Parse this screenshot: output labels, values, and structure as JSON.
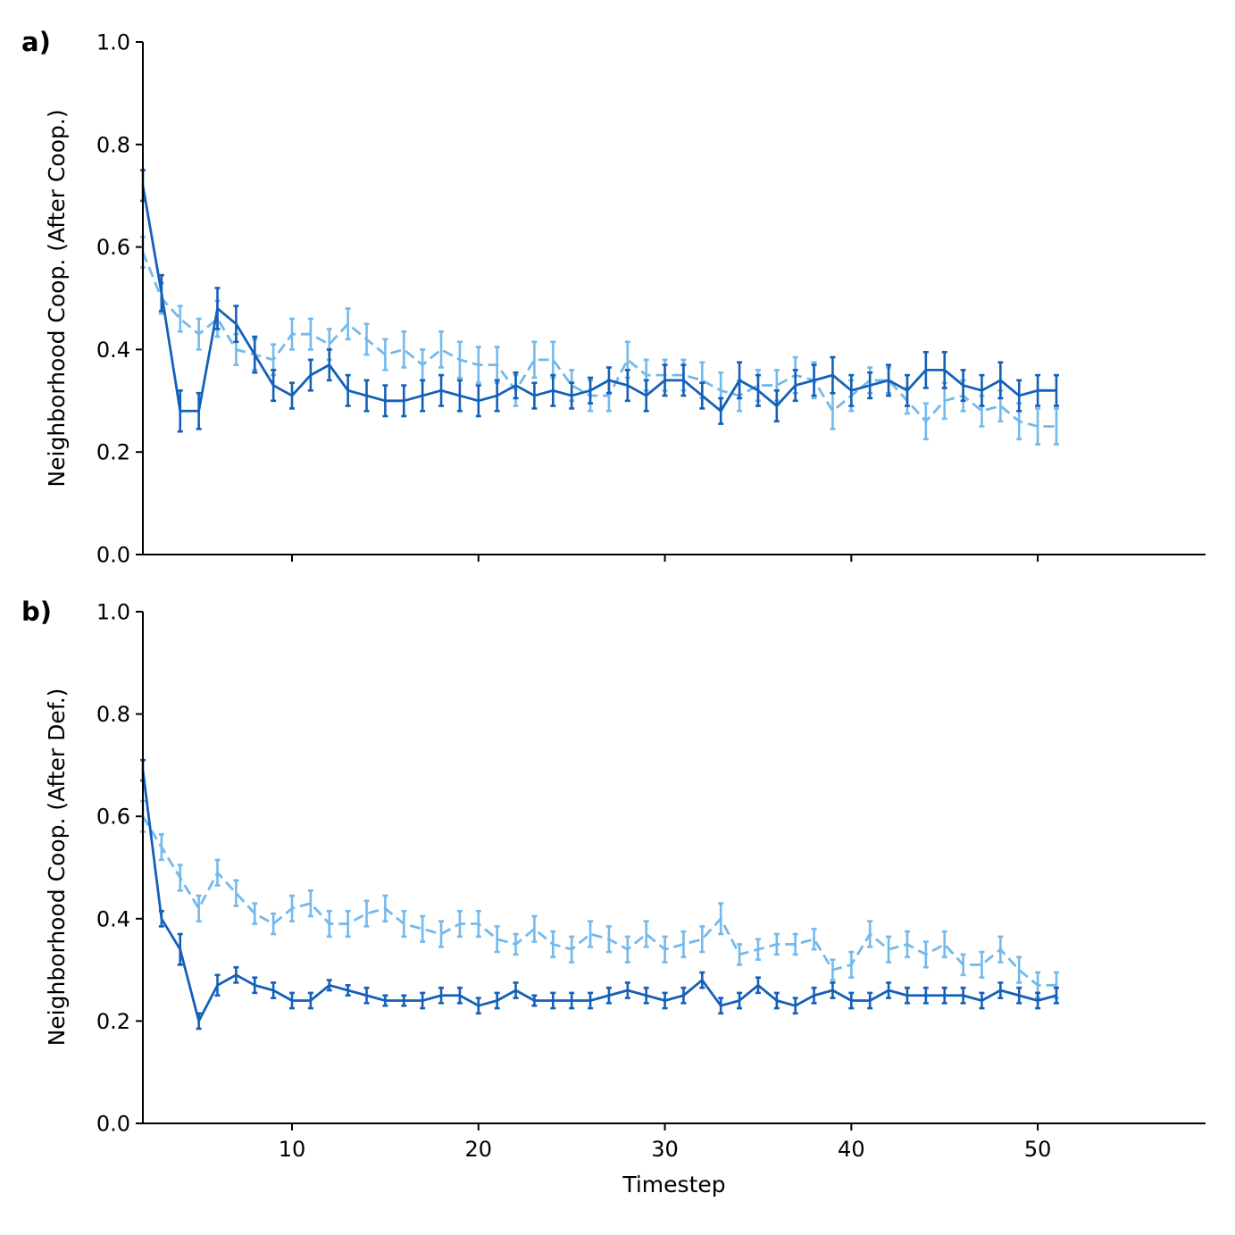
{
  "colors": {
    "series1": "#1460b8",
    "series2": "#74b9eb"
  },
  "chart_data": [
    {
      "type": "line",
      "panel_label": "a)",
      "ylabel": "Neighborhood Coop. (After Coop.)",
      "xlabel": "",
      "xlim": [
        2,
        59
      ],
      "ylim": [
        0.0,
        1.0
      ],
      "yticks": [
        "0.0",
        "0.2",
        "0.4",
        "0.6",
        "0.8",
        "1.0"
      ],
      "xticks": [
        10,
        20,
        30,
        40,
        50
      ],
      "show_xtick_labels": false,
      "x_start": 2,
      "series": [
        {
          "style": "solid",
          "values": [
            0.72,
            0.51,
            0.28,
            0.28,
            0.48,
            0.45,
            0.39,
            0.33,
            0.31,
            0.35,
            0.37,
            0.32,
            0.31,
            0.3,
            0.3,
            0.31,
            0.32,
            0.31,
            0.3,
            0.31,
            0.33,
            0.31,
            0.32,
            0.31,
            0.32,
            0.34,
            0.33,
            0.31,
            0.34,
            0.34,
            0.31,
            0.28,
            0.34,
            0.32,
            0.29,
            0.33,
            0.34,
            0.35,
            0.32,
            0.33,
            0.34,
            0.32,
            0.36,
            0.36,
            0.33,
            0.32,
            0.34,
            0.31,
            0.32,
            0.32
          ],
          "errors": [
            0.03,
            0.035,
            0.04,
            0.035,
            0.04,
            0.035,
            0.035,
            0.03,
            0.025,
            0.03,
            0.03,
            0.03,
            0.03,
            0.03,
            0.03,
            0.03,
            0.03,
            0.03,
            0.03,
            0.03,
            0.025,
            0.025,
            0.03,
            0.025,
            0.025,
            0.025,
            0.03,
            0.03,
            0.03,
            0.03,
            0.025,
            0.025,
            0.035,
            0.03,
            0.03,
            0.03,
            0.03,
            0.035,
            0.03,
            0.025,
            0.03,
            0.03,
            0.035,
            0.035,
            0.03,
            0.03,
            0.035,
            0.03,
            0.03,
            0.03
          ]
        },
        {
          "style": "dashed",
          "values": [
            0.59,
            0.5,
            0.46,
            0.43,
            0.46,
            0.4,
            0.39,
            0.38,
            0.43,
            0.43,
            0.41,
            0.45,
            0.42,
            0.39,
            0.4,
            0.37,
            0.4,
            0.38,
            0.37,
            0.37,
            0.32,
            0.38,
            0.38,
            0.33,
            0.31,
            0.31,
            0.38,
            0.35,
            0.35,
            0.35,
            0.34,
            0.32,
            0.31,
            0.33,
            0.33,
            0.35,
            0.34,
            0.28,
            0.31,
            0.34,
            0.34,
            0.3,
            0.26,
            0.3,
            0.31,
            0.28,
            0.29,
            0.26,
            0.25,
            0.25
          ],
          "errors": [
            0.03,
            0.03,
            0.025,
            0.03,
            0.035,
            0.03,
            0.03,
            0.03,
            0.03,
            0.03,
            0.03,
            0.03,
            0.03,
            0.03,
            0.035,
            0.03,
            0.035,
            0.035,
            0.035,
            0.035,
            0.03,
            0.035,
            0.035,
            0.03,
            0.03,
            0.03,
            0.035,
            0.03,
            0.03,
            0.03,
            0.035,
            0.035,
            0.03,
            0.03,
            0.03,
            0.035,
            0.035,
            0.035,
            0.03,
            0.025,
            0.025,
            0.025,
            0.035,
            0.035,
            0.03,
            0.03,
            0.03,
            0.035,
            0.035,
            0.035
          ]
        }
      ]
    },
    {
      "type": "line",
      "panel_label": "b)",
      "ylabel": "Neighborhood Coop. (After Def.)",
      "xlabel": "Timestep",
      "xlim": [
        2,
        59
      ],
      "ylim": [
        0.0,
        1.0
      ],
      "yticks": [
        "0.0",
        "0.2",
        "0.4",
        "0.6",
        "0.8",
        "1.0"
      ],
      "xticks": [
        10,
        20,
        30,
        40,
        50
      ],
      "show_xtick_labels": true,
      "x_start": 2,
      "series": [
        {
          "style": "solid",
          "values": [
            0.69,
            0.4,
            0.34,
            0.2,
            0.27,
            0.29,
            0.27,
            0.26,
            0.24,
            0.24,
            0.27,
            0.26,
            0.25,
            0.24,
            0.24,
            0.24,
            0.25,
            0.25,
            0.23,
            0.24,
            0.26,
            0.24,
            0.24,
            0.24,
            0.24,
            0.25,
            0.26,
            0.25,
            0.24,
            0.25,
            0.28,
            0.23,
            0.24,
            0.27,
            0.24,
            0.23,
            0.25,
            0.26,
            0.24,
            0.24,
            0.26,
            0.25,
            0.25,
            0.25,
            0.25,
            0.24,
            0.26,
            0.25,
            0.24,
            0.25
          ],
          "errors": [
            0.02,
            0.015,
            0.03,
            0.015,
            0.02,
            0.015,
            0.015,
            0.015,
            0.015,
            0.015,
            0.01,
            0.01,
            0.015,
            0.01,
            0.01,
            0.015,
            0.015,
            0.015,
            0.015,
            0.015,
            0.015,
            0.01,
            0.015,
            0.015,
            0.015,
            0.015,
            0.015,
            0.015,
            0.015,
            0.015,
            0.015,
            0.015,
            0.015,
            0.015,
            0.015,
            0.015,
            0.015,
            0.015,
            0.015,
            0.015,
            0.015,
            0.015,
            0.015,
            0.015,
            0.015,
            0.015,
            0.015,
            0.015,
            0.015,
            0.015
          ]
        },
        {
          "style": "dashed",
          "values": [
            0.6,
            0.54,
            0.48,
            0.42,
            0.49,
            0.45,
            0.41,
            0.39,
            0.42,
            0.43,
            0.39,
            0.39,
            0.41,
            0.42,
            0.39,
            0.38,
            0.37,
            0.39,
            0.39,
            0.36,
            0.35,
            0.38,
            0.35,
            0.34,
            0.37,
            0.36,
            0.34,
            0.37,
            0.34,
            0.35,
            0.36,
            0.4,
            0.33,
            0.34,
            0.35,
            0.35,
            0.36,
            0.3,
            0.31,
            0.37,
            0.34,
            0.35,
            0.33,
            0.35,
            0.31,
            0.31,
            0.34,
            0.3,
            0.27,
            0.27
          ],
          "errors": [
            0.03,
            0.025,
            0.025,
            0.025,
            0.025,
            0.025,
            0.02,
            0.02,
            0.025,
            0.025,
            0.025,
            0.025,
            0.025,
            0.025,
            0.025,
            0.025,
            0.025,
            0.025,
            0.025,
            0.025,
            0.02,
            0.025,
            0.025,
            0.025,
            0.025,
            0.025,
            0.025,
            0.025,
            0.025,
            0.025,
            0.025,
            0.03,
            0.02,
            0.02,
            0.02,
            0.02,
            0.02,
            0.02,
            0.025,
            0.025,
            0.025,
            0.025,
            0.025,
            0.025,
            0.02,
            0.025,
            0.025,
            0.025,
            0.025,
            0.025
          ]
        }
      ]
    }
  ]
}
